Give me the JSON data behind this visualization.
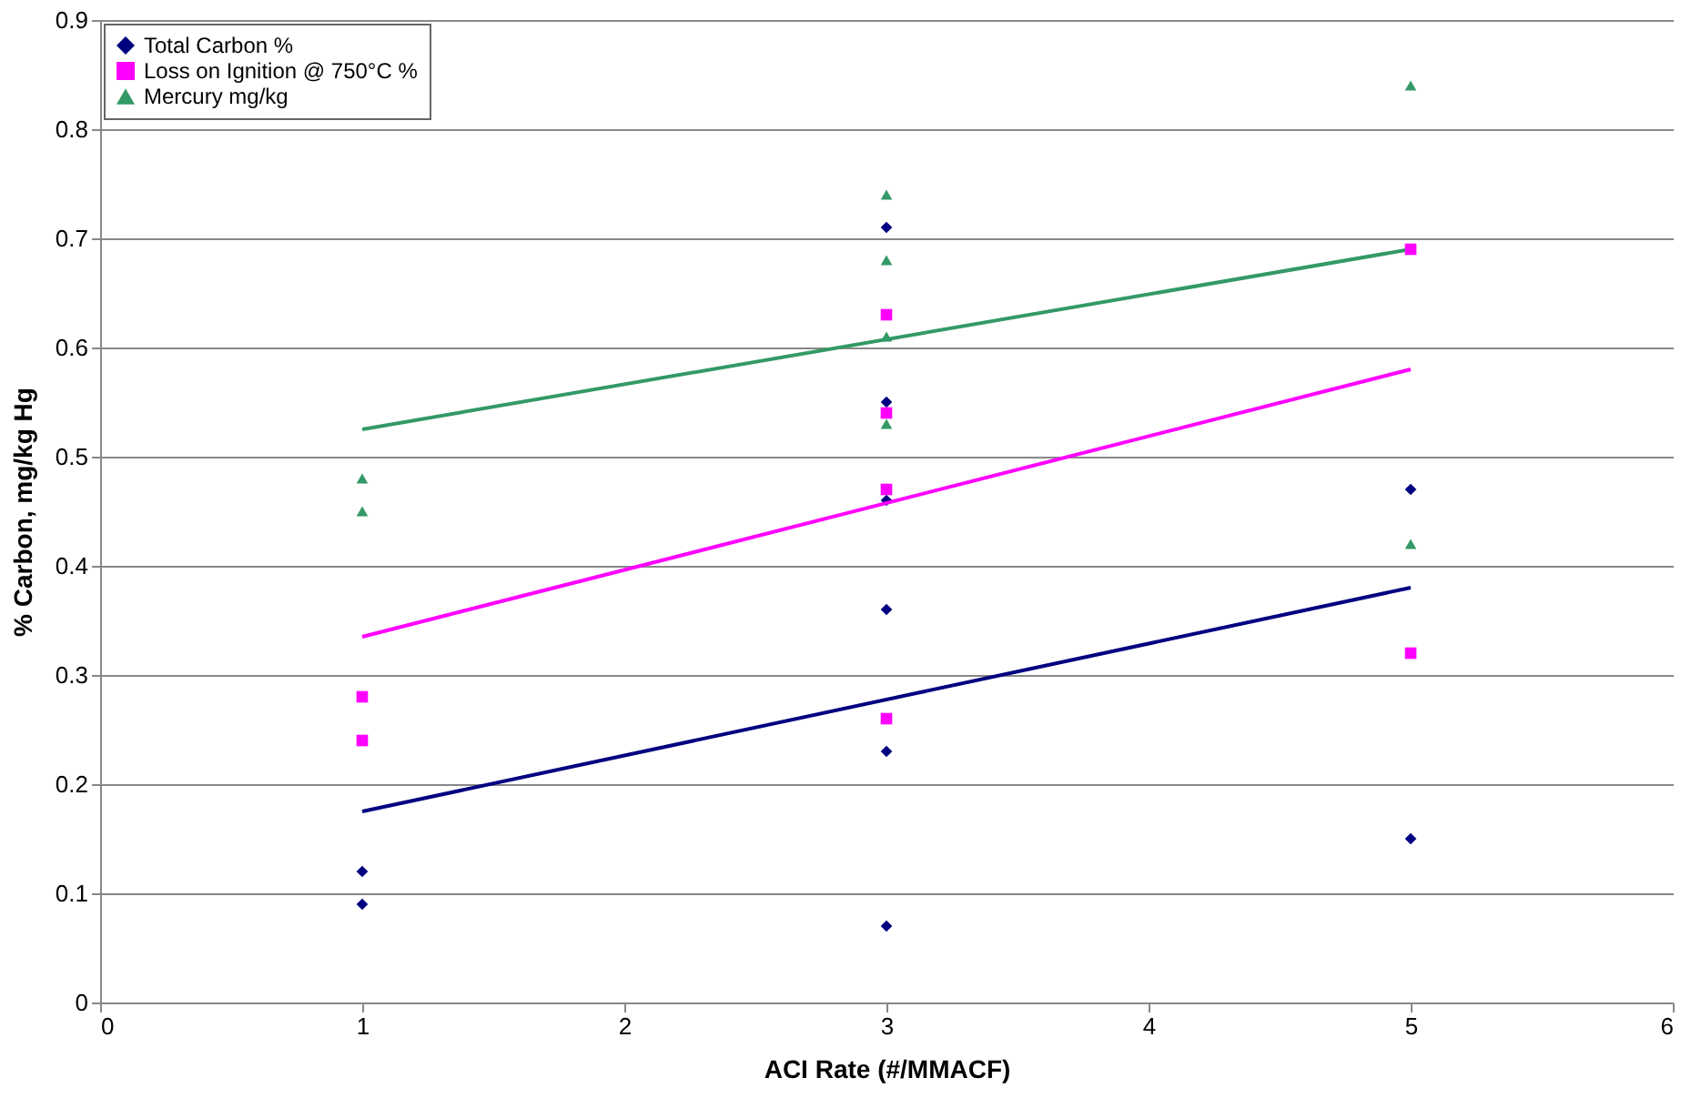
{
  "chart_data": {
    "type": "scatter",
    "xlabel": "ACI Rate (#/MMACF)",
    "ylabel": "% Carbon, mg/kg Hg",
    "xlim": [
      0,
      6
    ],
    "xticks": [
      0,
      1,
      2,
      3,
      4,
      5,
      6
    ],
    "ylim": [
      0,
      0.9
    ],
    "yticks": [
      0,
      0.1,
      0.2,
      0.3,
      0.4,
      0.5,
      0.6,
      0.7,
      0.8,
      0.9
    ],
    "grid": "y",
    "legend": "top left",
    "series": [
      {
        "name": "Total Carbon %",
        "color": "#000080",
        "marker": "diamond",
        "x": [
          1,
          1,
          3,
          3,
          3,
          3,
          3,
          3,
          5,
          5
        ],
        "values": [
          0.12,
          0.09,
          0.71,
          0.55,
          0.46,
          0.36,
          0.23,
          0.07,
          0.47,
          0.15
        ]
      },
      {
        "name": "Loss on Ignition @ 750°C %",
        "color": "#ff00ff",
        "marker": "square",
        "x": [
          1,
          1,
          3,
          3,
          3,
          3,
          5,
          5
        ],
        "values": [
          0.28,
          0.24,
          0.63,
          0.54,
          0.47,
          0.26,
          0.69,
          0.32
        ]
      },
      {
        "name": "Mercury mg/kg",
        "color": "#339966",
        "marker": "triangle",
        "x": [
          1,
          1,
          3,
          3,
          3,
          3,
          5,
          5
        ],
        "values": [
          0.48,
          0.45,
          0.74,
          0.68,
          0.61,
          0.53,
          0.84,
          0.42
        ]
      },
      {
        "type": "line",
        "color": "#000080",
        "x": [
          1,
          5
        ],
        "values": [
          0.175,
          0.38
        ]
      },
      {
        "type": "line",
        "color": "#ff00ff",
        "x": [
          1,
          5
        ],
        "values": [
          0.335,
          0.58
        ]
      },
      {
        "type": "line",
        "color": "#339966",
        "x": [
          1,
          5
        ],
        "values": [
          0.525,
          0.69
        ]
      }
    ]
  }
}
